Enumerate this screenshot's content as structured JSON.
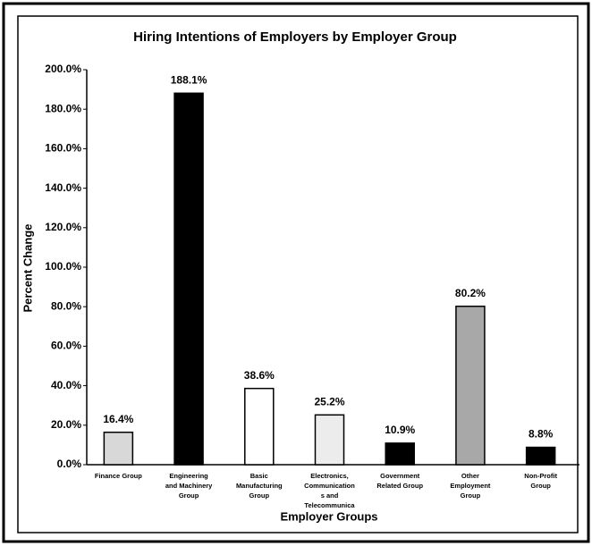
{
  "chart_data": {
    "type": "bar",
    "title": "Hiring Intentions of Employers by Employer Group",
    "x_label": "Employer Groups",
    "y_label": "Percent Change",
    "categories": [
      "Finance Group",
      "Engineering and Machinery Group",
      "Basic Manufacturing Group",
      "Electronics, Communication s and Telecommunica",
      "Government Related Group",
      "Other Employment Group",
      "Non-Profit Group"
    ],
    "values": [
      16.4,
      188.1,
      38.6,
      25.2,
      10.9,
      80.2,
      8.8
    ],
    "value_labels": [
      "16.4%",
      "188.1%",
      "38.6%",
      "25.2%",
      "10.9%",
      "80.2%",
      "8.8%"
    ],
    "colors": [
      "#d8d8d8",
      "#000000",
      "#ffffff",
      "#ececec",
      "#000000",
      "#a8a8a8",
      "#000000"
    ],
    "ylim": [
      0,
      200
    ],
    "yticks": [
      {
        "value": 0,
        "label": "0.0%"
      },
      {
        "value": 20,
        "label": "20.0%"
      },
      {
        "value": 40,
        "label": "40.0%"
      },
      {
        "value": 60,
        "label": "60.0%"
      },
      {
        "value": 80,
        "label": "80.0%"
      },
      {
        "value": 100,
        "label": "100.0%"
      },
      {
        "value": 120,
        "label": "120.0%"
      },
      {
        "value": 140,
        "label": "140.0%"
      },
      {
        "value": 160,
        "label": "160.0%"
      },
      {
        "value": 180,
        "label": "180.0%"
      },
      {
        "value": 200,
        "label": "200.0%"
      }
    ],
    "grid": false
  }
}
